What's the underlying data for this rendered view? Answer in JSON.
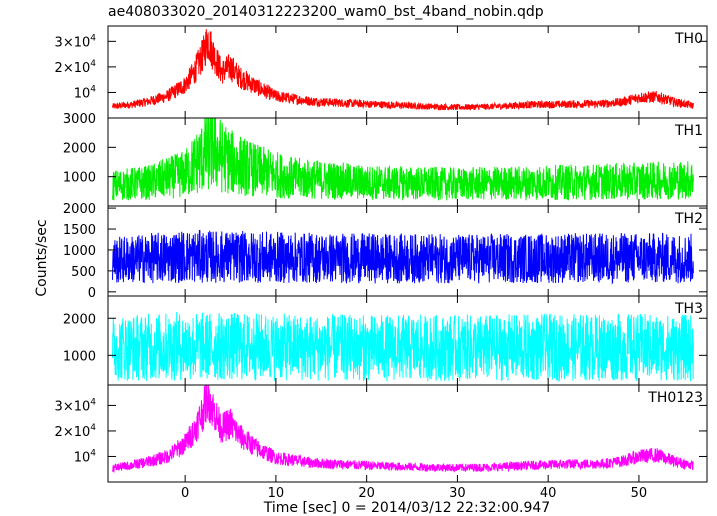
{
  "chart_data": {
    "type": "line",
    "title": "ae408033020_20140312223200_wam0_bst_4band_nobin.qdp",
    "xlabel": "Time [sec] 0 = 2014/03/12 22:32:00.947",
    "ylabel": "Counts/sec",
    "xlim": [
      -8.5,
      57.5
    ],
    "x_ticks": [
      0,
      10,
      20,
      30,
      40,
      50
    ],
    "x_tick_labels": [
      "0",
      "10",
      "20",
      "30",
      "40",
      "50"
    ],
    "grid": false,
    "series": [
      {
        "name": "TH0",
        "color": "#ff0000",
        "ylim": [
          0,
          36000
        ],
        "y_ticks": [
          10000,
          20000,
          30000
        ],
        "y_tick_labels": [
          [
            "10",
            "4"
          ],
          [
            "2×10",
            "4"
          ],
          [
            "3×10",
            "4"
          ]
        ],
        "x": [
          -8,
          -6,
          -4,
          -2,
          0,
          1,
          2,
          2.5,
          3,
          4,
          5,
          6,
          8,
          10,
          14,
          18,
          22,
          26,
          30,
          34,
          38,
          42,
          46,
          48,
          50,
          52,
          54,
          56
        ],
        "y": [
          4500,
          5200,
          6500,
          8500,
          13000,
          18000,
          25000,
          31000,
          26000,
          18000,
          20000,
          16000,
          12000,
          8500,
          6500,
          5800,
          5200,
          4600,
          4200,
          4500,
          5200,
          5400,
          5600,
          6200,
          8000,
          8300,
          6200,
          4800
        ]
      },
      {
        "name": "TH1",
        "color": "#00ee00",
        "ylim": [
          0,
          3000
        ],
        "y_ticks": [
          1000,
          2000,
          3000
        ],
        "y_tick_labels": [
          [
            "1000",
            ""
          ],
          [
            "2000",
            ""
          ],
          [
            "3000",
            ""
          ]
        ],
        "x": [
          -8,
          -4,
          0,
          2,
          3,
          4,
          5,
          8,
          12,
          20,
          30,
          40,
          50,
          56
        ],
        "y": [
          700,
          800,
          1100,
          1700,
          2000,
          1700,
          1500,
          1200,
          950,
          800,
          750,
          800,
          850,
          900
        ]
      },
      {
        "name": "TH2",
        "color": "#0000ff",
        "ylim": [
          -100,
          2050
        ],
        "y_ticks": [
          0,
          500,
          1000,
          1500,
          2000
        ],
        "y_tick_labels": [
          [
            "0",
            ""
          ],
          [
            "500",
            ""
          ],
          [
            "1000",
            ""
          ],
          [
            "1500",
            ""
          ],
          [
            "2000",
            ""
          ]
        ],
        "x": [
          -8,
          0,
          10,
          20,
          30,
          40,
          50,
          56
        ],
        "y": [
          750,
          850,
          820,
          800,
          790,
          800,
          810,
          800
        ]
      },
      {
        "name": "TH3",
        "color": "#00ffff",
        "ylim": [
          200,
          2600
        ],
        "y_ticks": [
          1000,
          2000
        ],
        "y_tick_labels": [
          [
            "1000",
            ""
          ],
          [
            "2000",
            ""
          ]
        ],
        "x": [
          -8,
          0,
          10,
          20,
          30,
          40,
          50,
          56
        ],
        "y": [
          1200,
          1250,
          1220,
          1200,
          1200,
          1210,
          1220,
          1200
        ]
      },
      {
        "name": "TH0123",
        "color": "#ff00ff",
        "ylim": [
          0,
          38000
        ],
        "y_ticks": [
          10000,
          20000,
          30000
        ],
        "y_tick_labels": [
          [
            "10",
            "4"
          ],
          [
            "2×10",
            "4"
          ],
          [
            "3×10",
            "4"
          ]
        ],
        "x": [
          -8,
          -6,
          -4,
          -2,
          0,
          1,
          2,
          2.5,
          3,
          4,
          5,
          6,
          8,
          10,
          14,
          18,
          22,
          26,
          30,
          34,
          38,
          42,
          46,
          48,
          50,
          52,
          54,
          56
        ],
        "y": [
          5500,
          6500,
          8000,
          10000,
          15000,
          20000,
          28000,
          34000,
          29000,
          21000,
          23000,
          18000,
          13000,
          9500,
          7500,
          6800,
          6200,
          5800,
          5600,
          5800,
          6500,
          7000,
          7200,
          8000,
          10000,
          10500,
          8000,
          6500
        ]
      }
    ]
  }
}
